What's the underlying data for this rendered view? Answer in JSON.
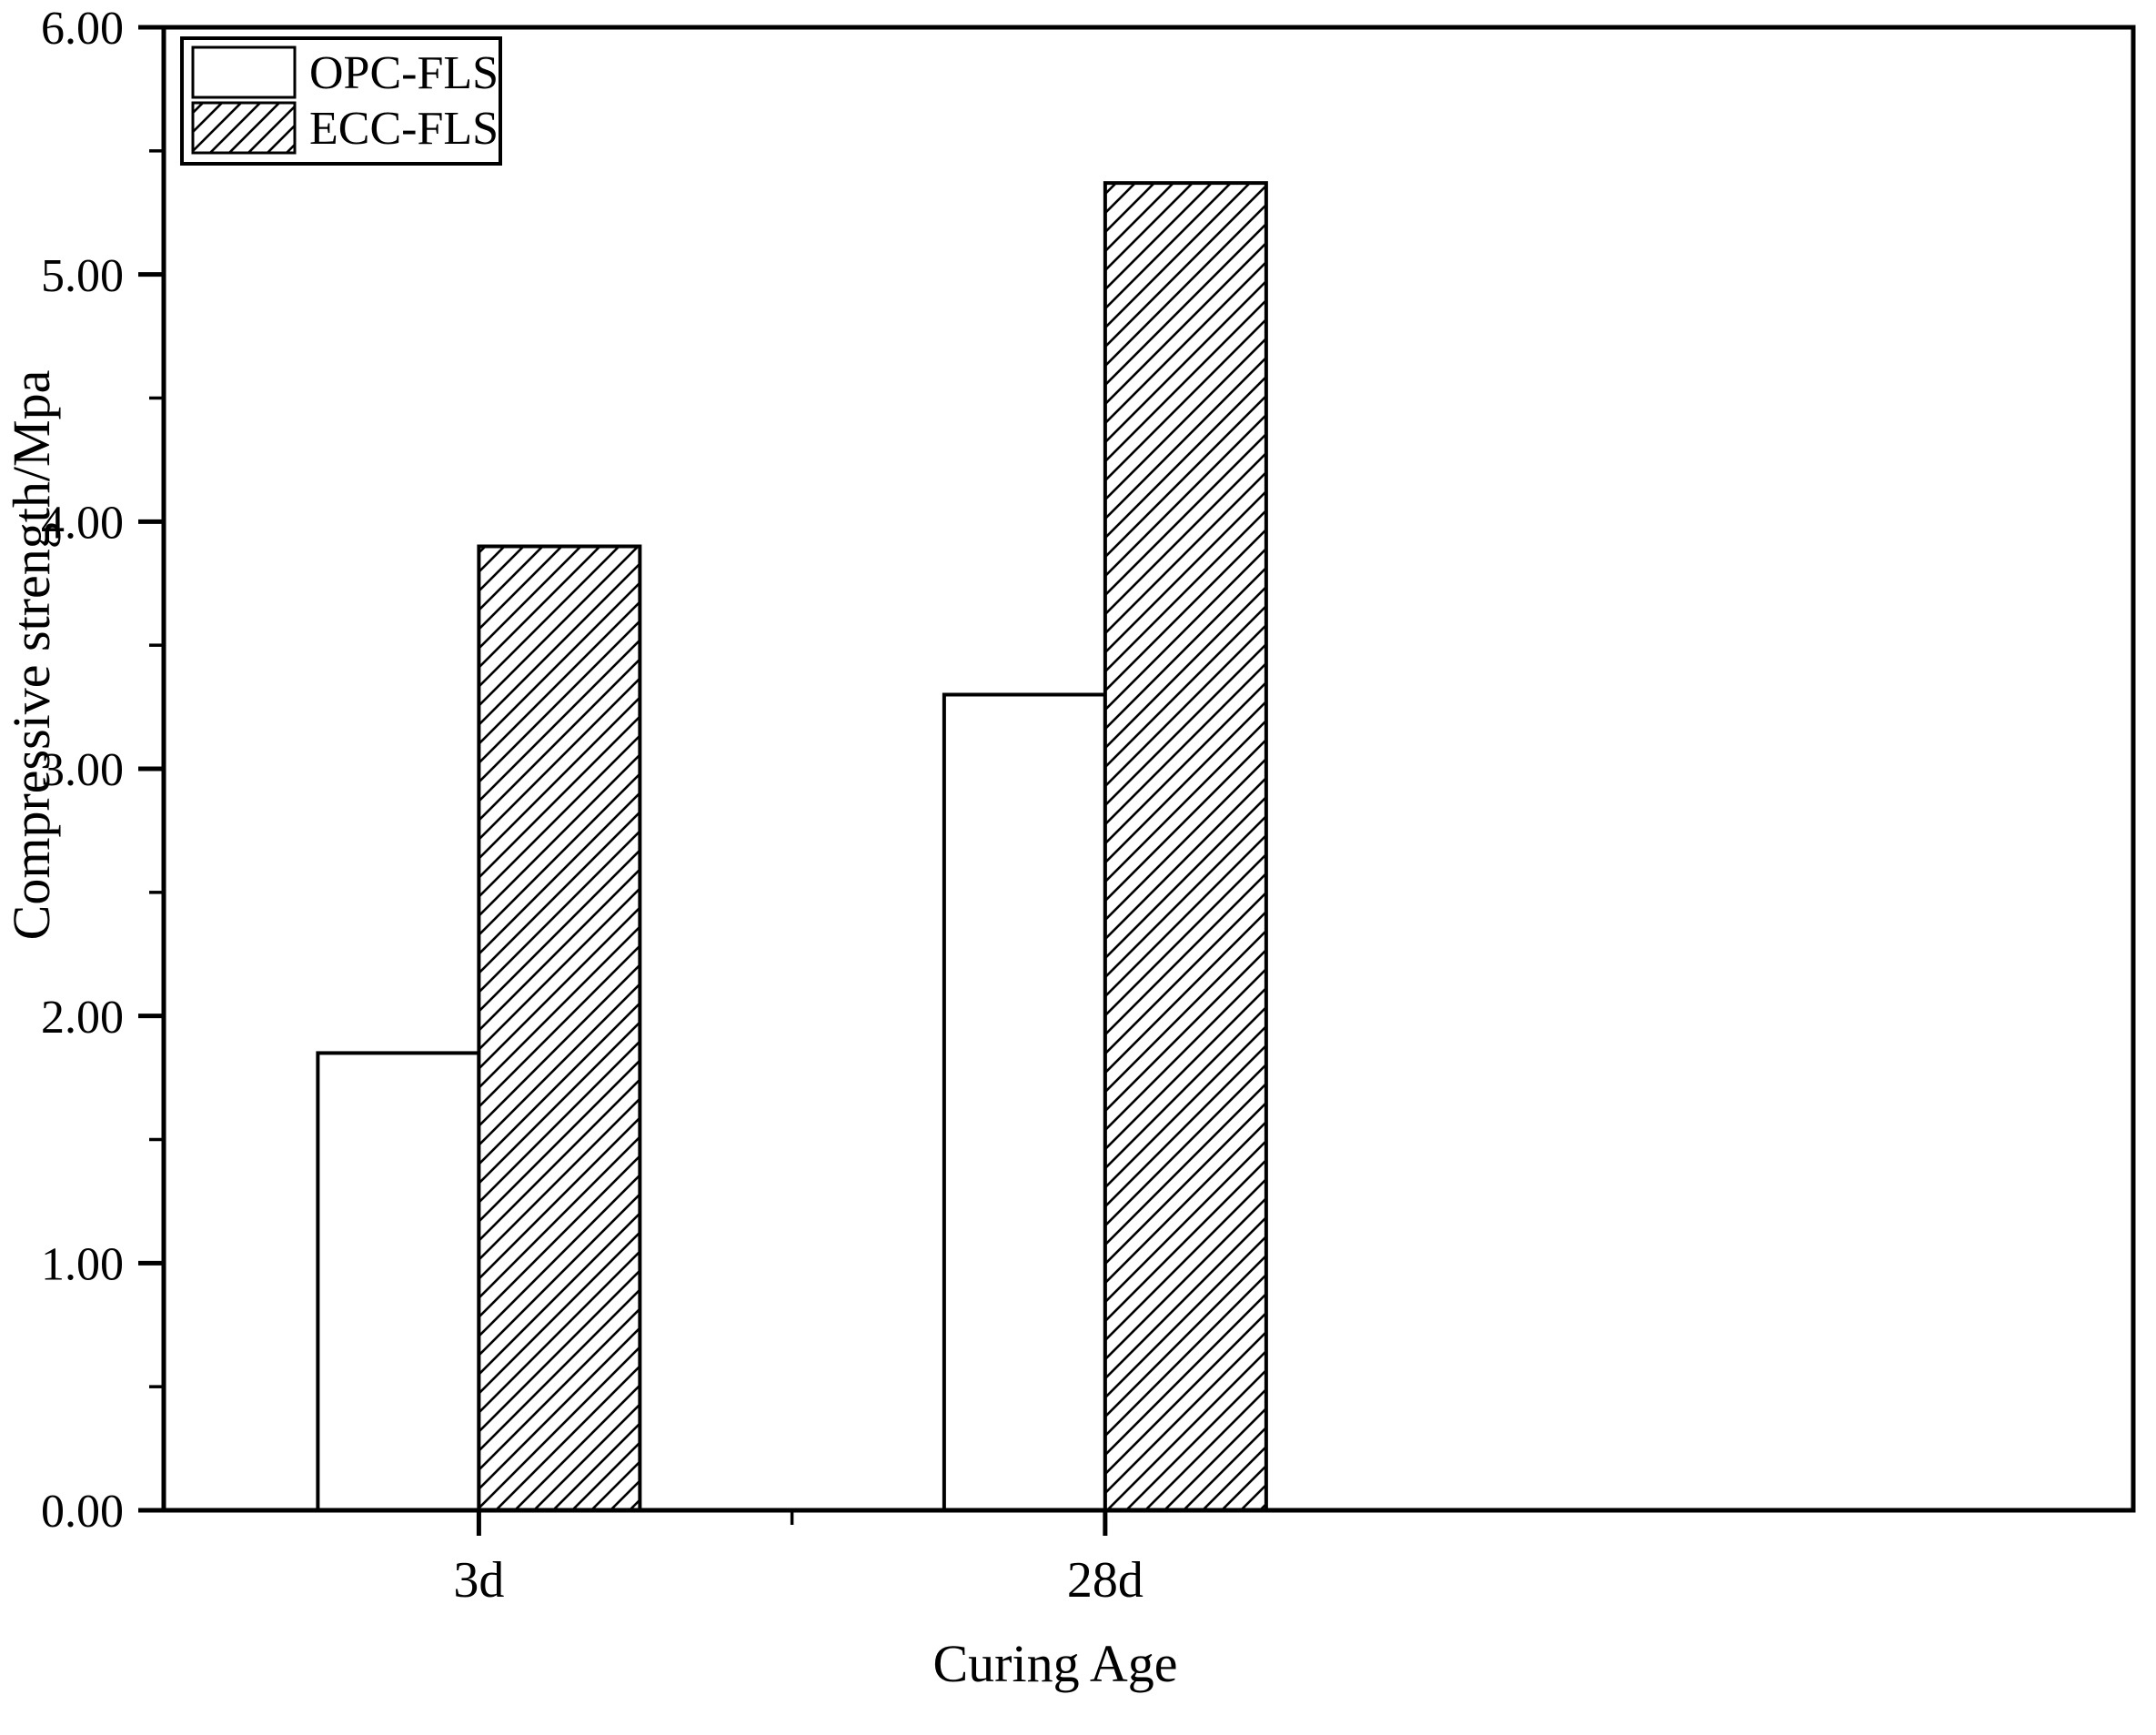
{
  "chart_data": {
    "type": "bar",
    "categories": [
      "3d",
      "28d"
    ],
    "series": [
      {
        "name": "OPC-FLS",
        "style": "solid-white",
        "values": [
          1.85,
          3.3
        ]
      },
      {
        "name": "ECC-FLS",
        "style": "diagonal-hatch",
        "values": [
          3.9,
          5.37
        ]
      }
    ],
    "xlabel": "Curing Age",
    "ylabel": "Compressive strength/Mpa",
    "ylim": [
      0,
      6
    ],
    "ytick_step": 1.0,
    "ytick_minor_step": 0.5,
    "ytick_labels": [
      "0.00",
      "1.00",
      "2.00",
      "3.00",
      "4.00",
      "5.00",
      "6.00"
    ],
    "legend": {
      "position": "top-left",
      "entries": [
        "OPC-FLS",
        "ECC-FLS"
      ]
    },
    "grid": false,
    "colors": {
      "bar_outline": "#000000",
      "background": "#ffffff",
      "text": "#000000"
    }
  }
}
